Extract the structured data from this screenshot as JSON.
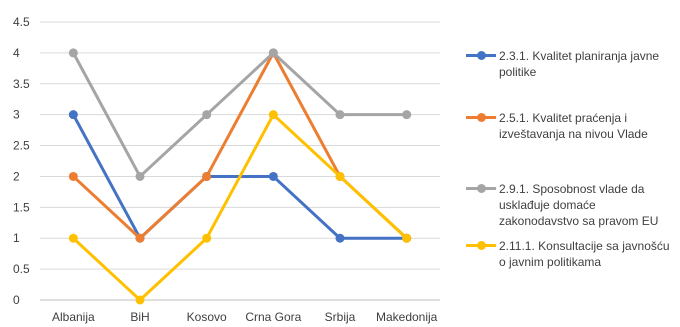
{
  "chart_data": {
    "type": "line",
    "categories": [
      "Albanija",
      "BiH",
      "Kosovo",
      "Crna Gora",
      "Srbija",
      "Makedonija"
    ],
    "series": [
      {
        "name": "2.3.1. Kvalitet planiranja javne politike",
        "color": "#4472C4",
        "values": [
          3,
          1,
          2,
          2,
          1,
          1
        ]
      },
      {
        "name": "2.5.1. Kvalitet praćenja i izveštavanja na nivou Vlade",
        "color": "#ED7D31",
        "values": [
          2,
          1,
          2,
          4,
          2,
          1
        ]
      },
      {
        "name": "2.9.1. Sposobnost vlade da usklađuje domaće zakonodavstvo sa pravom EU",
        "color": "#A5A5A5",
        "values": [
          4,
          2,
          3,
          4,
          3,
          3
        ]
      },
      {
        "name": "2.11.1. Konsultacije sa javnošću o javnim politikama",
        "color": "#FFC000",
        "values": [
          1,
          0,
          1,
          3,
          2,
          1
        ]
      }
    ],
    "y_ticks": [
      "0",
      "0.5",
      "1",
      "1.5",
      "2",
      "2.5",
      "3",
      "3.5",
      "4",
      "4.5"
    ],
    "ylim": [
      0,
      4.5
    ],
    "grid": true,
    "legend_position": "right"
  }
}
